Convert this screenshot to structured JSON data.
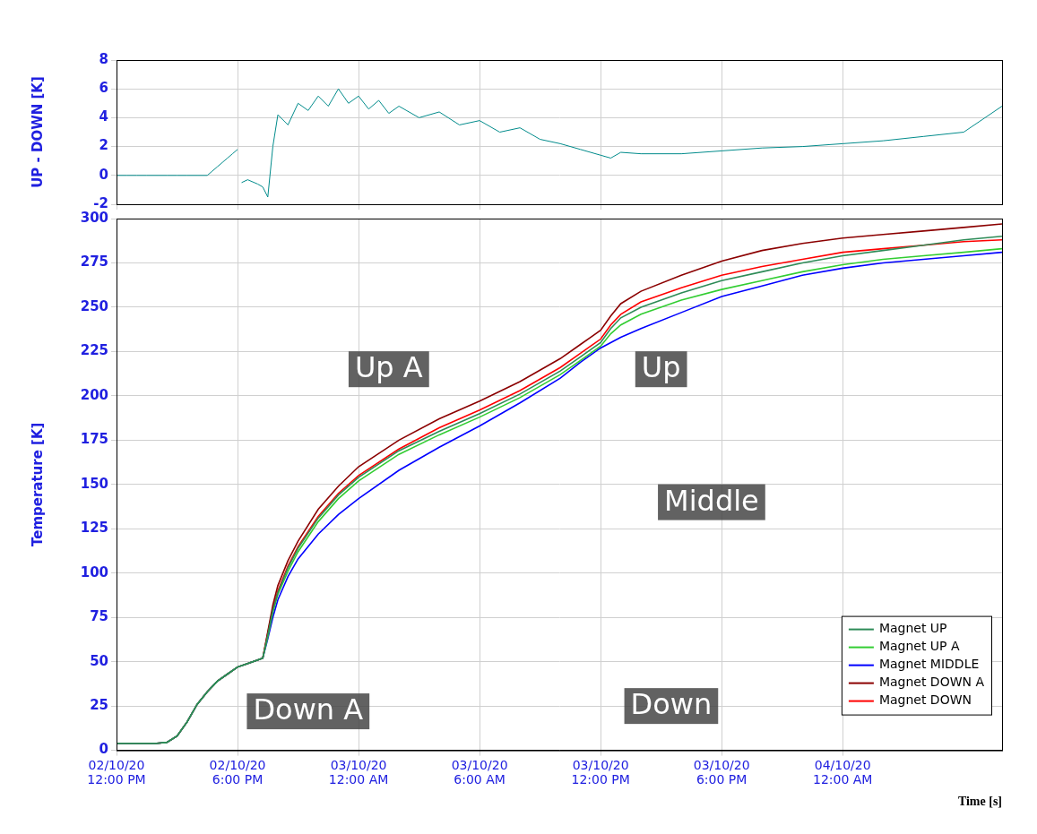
{
  "chart_data": [
    {
      "type": "line",
      "ylabel": "UP - DOWN [K]",
      "x": [
        0,
        0.5,
        1,
        1.5,
        2,
        2.5,
        3,
        3.5,
        4,
        4.5,
        4.75,
        5,
        5.25,
        5.5,
        5.75,
        6,
        6.1,
        6.2,
        6.5,
        7,
        7.25,
        7.5,
        7.75,
        8,
        8.5,
        9,
        9.5,
        10,
        10.5,
        11,
        11.5,
        12,
        12.5,
        13,
        13.5,
        14,
        15,
        16,
        17,
        18,
        19,
        20,
        21,
        22,
        23,
        24,
        24.5,
        25,
        26,
        28,
        30,
        32,
        34,
        36,
        38,
        40,
        42,
        43.9
      ],
      "values": [
        0,
        0,
        0,
        0,
        0,
        0,
        0,
        0,
        0,
        0,
        0.3,
        0.6,
        0.9,
        1.2,
        1.5,
        1.8,
        null,
        -0.5,
        -0.3,
        -0.6,
        -0.8,
        -1.5,
        2,
        4.2,
        3.5,
        5,
        4.5,
        5.5,
        4.8,
        6,
        5,
        5.5,
        4.6,
        5.2,
        4.3,
        4.8,
        4,
        4.4,
        3.5,
        3.8,
        3,
        3.3,
        2.5,
        2.2,
        1.8,
        1.4,
        1.2,
        1.6,
        1.5,
        1.5,
        1.7,
        1.9,
        2,
        2.2,
        2.4,
        2.7,
        3,
        4.8
      ],
      "color": "#008b8b",
      "xlim": [
        0,
        43.9
      ],
      "xticks": [
        0,
        6,
        12,
        18,
        24,
        30,
        36
      ],
      "ylim": [
        -2,
        8
      ],
      "yticks": [
        -2,
        0,
        2,
        4,
        6,
        8
      ],
      "grid": true,
      "tick_labels": "y"
    },
    {
      "type": "line",
      "ylabel": "Temperature [K]",
      "xlabel": "Time [s]",
      "x": [
        0,
        1,
        2,
        2.5,
        3,
        3.5,
        4,
        4.5,
        5,
        5.5,
        6,
        6.5,
        7,
        7.25,
        7.5,
        7.75,
        8,
        8.5,
        9,
        10,
        11,
        12,
        14,
        16,
        18,
        20,
        22,
        23,
        23.5,
        24,
        24.5,
        25,
        26,
        28,
        30,
        32,
        34,
        36,
        38,
        40,
        42,
        43.9
      ],
      "series": [
        {
          "name": "Magnet UP",
          "color": "#2e8b57",
          "values": [
            4,
            4,
            4,
            4.5,
            8,
            16,
            26,
            33,
            39,
            43,
            47,
            49,
            51,
            52,
            65,
            79,
            89,
            103,
            114,
            131,
            144,
            154,
            169,
            180,
            190,
            201,
            214,
            222,
            226,
            230,
            238,
            244,
            250,
            258,
            265,
            270,
            275,
            279,
            282,
            285,
            288,
            290
          ]
        },
        {
          "name": "Magnet UP A",
          "color": "#32cd32",
          "values": [
            4,
            4,
            4,
            4.5,
            8,
            16,
            26,
            33,
            39,
            43,
            47,
            49,
            51,
            52,
            64,
            78,
            88,
            101,
            112,
            129,
            142,
            152,
            167,
            178,
            188,
            199,
            212,
            220,
            224,
            228,
            235,
            240,
            246,
            254,
            260,
            265,
            270,
            274,
            277,
            279,
            281,
            283
          ]
        },
        {
          "name": "Magnet MIDDLE",
          "color": "#0000ff",
          "values": [
            4,
            4,
            4,
            4.5,
            8,
            16,
            26,
            33,
            39,
            43,
            47,
            49,
            51,
            52,
            63,
            75,
            85,
            98,
            108,
            122,
            133,
            142,
            158,
            171,
            183,
            196,
            210,
            219,
            223,
            227,
            230,
            233,
            238,
            247,
            256,
            262,
            268,
            272,
            275,
            277,
            279,
            281
          ]
        },
        {
          "name": "Magnet DOWN A",
          "color": "#8b0000",
          "values": [
            4,
            4,
            4,
            4.5,
            8,
            16,
            26,
            33,
            39,
            43,
            47,
            49,
            51,
            52,
            67,
            82,
            93,
            107,
            118,
            136,
            149,
            160,
            175,
            187,
            197,
            208,
            221,
            229,
            233,
            237,
            245,
            252,
            259,
            268,
            276,
            282,
            286,
            289,
            291,
            293,
            295,
            297
          ]
        },
        {
          "name": "Magnet DOWN",
          "color": "#ff0000",
          "values": [
            4,
            4,
            4,
            4.5,
            8,
            16,
            26,
            33,
            39,
            43,
            47,
            49,
            51,
            52,
            66,
            80,
            90,
            104,
            115,
            132,
            145,
            155,
            170,
            182,
            192,
            203,
            216,
            224,
            228,
            232,
            240,
            246,
            253,
            261,
            268,
            273,
            277,
            281,
            283,
            285,
            287,
            288
          ]
        }
      ],
      "xlim": [
        0,
        43.9
      ],
      "xticks": [
        {
          "value": 0,
          "label": "02/10/20 12:00 PM"
        },
        {
          "value": 6,
          "label": "02/10/20 6:00 PM"
        },
        {
          "value": 12,
          "label": "03/10/20 12:00 AM"
        },
        {
          "value": 18,
          "label": "03/10/20 6:00 AM"
        },
        {
          "value": 24,
          "label": "03/10/20 12:00 PM"
        },
        {
          "value": 30,
          "label": "03/10/20 6:00 PM"
        },
        {
          "value": 36,
          "label": "04/10/20 12:00 AM"
        }
      ],
      "ylim": [
        0,
        300
      ],
      "yticks": [
        0,
        25,
        50,
        75,
        100,
        125,
        150,
        175,
        200,
        225,
        250,
        275,
        300
      ],
      "grid": true,
      "legend": "lower right",
      "annotations": [
        {
          "text": "Up A",
          "x": 13.5,
          "y": 215
        },
        {
          "text": "Up",
          "x": 27,
          "y": 215
        },
        {
          "text": "Middle",
          "x": 29.5,
          "y": 140
        },
        {
          "text": "Down A",
          "x": 9.5,
          "y": 22
        },
        {
          "text": "Down",
          "x": 27.5,
          "y": 25
        }
      ]
    }
  ]
}
